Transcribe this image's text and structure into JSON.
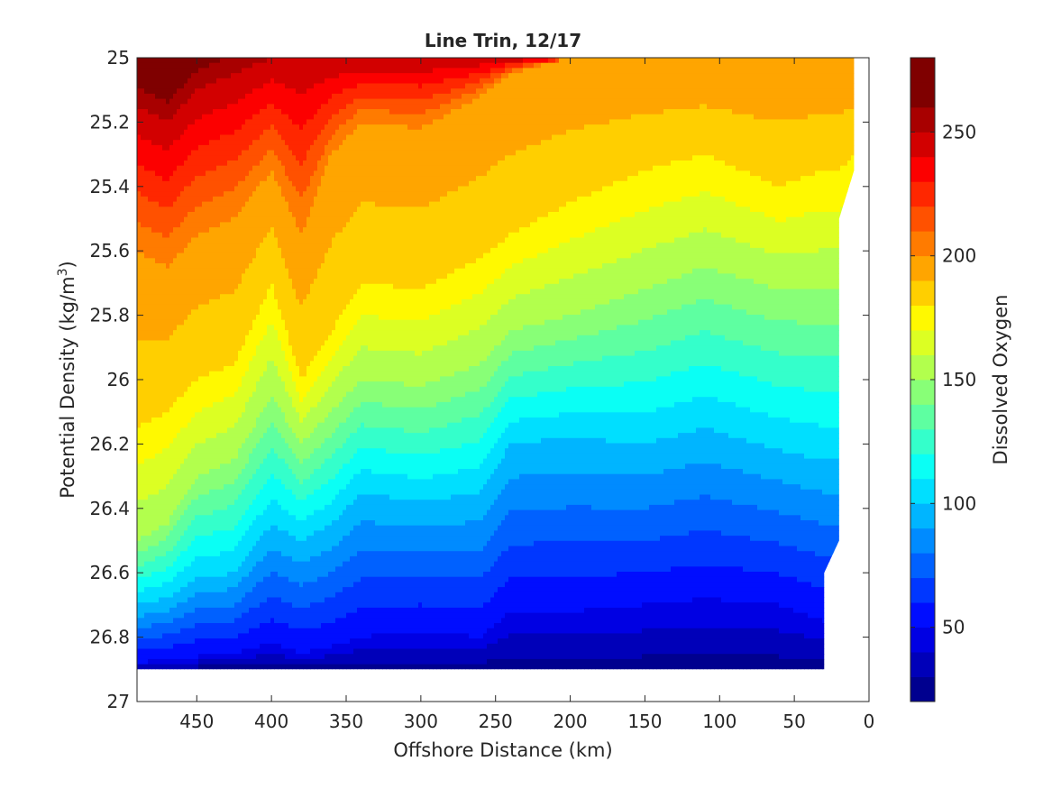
{
  "chart_data": {
    "type": "contour",
    "title": "Line Trin, 12/17",
    "xlabel": "Offshore Distance (km)",
    "ylabel_main": "Potential Density (kg/m",
    "ylabel_sup": "3",
    "ylabel_close": ")",
    "colorbar_label": "Dissolved Oxygen",
    "xlim": [
      490,
      0
    ],
    "x_reversed": true,
    "ylim": [
      25,
      27
    ],
    "y_reversed": true,
    "x_ticks": [
      "450",
      "400",
      "350",
      "300",
      "250",
      "200",
      "150",
      "100",
      "50",
      "0"
    ],
    "x_tick_values": [
      450,
      400,
      350,
      300,
      250,
      200,
      150,
      100,
      50,
      0
    ],
    "y_ticks": [
      "25",
      "25.2",
      "25.4",
      "25.6",
      "25.8",
      "26",
      "26.2",
      "26.4",
      "26.6",
      "26.8",
      "27"
    ],
    "y_tick_values": [
      25,
      25.2,
      25.4,
      25.6,
      25.8,
      26,
      26.2,
      26.4,
      26.6,
      26.8,
      27
    ],
    "colorbar_range": [
      20,
      280
    ],
    "colorbar_ticks": [
      "50",
      "100",
      "150",
      "200",
      "250"
    ],
    "colorbar_tick_values": [
      50,
      100,
      150,
      200,
      250
    ],
    "contour_levels": [
      20,
      30,
      40,
      50,
      60,
      70,
      80,
      90,
      100,
      110,
      120,
      130,
      140,
      150,
      160,
      170,
      180,
      190,
      200,
      210,
      220,
      230,
      240,
      250,
      260,
      270,
      280
    ],
    "colormap": [
      "#00008F",
      "#0000B9",
      "#0000E3",
      "#000DFF",
      "#0037FF",
      "#0061FF",
      "#008BFF",
      "#00B5FF",
      "#00DFFF",
      "#0AFFF5",
      "#34FFCB",
      "#5EFFA1",
      "#88FF77",
      "#B2FF4D",
      "#DCFF23",
      "#FFF900",
      "#FFCF00",
      "#FFA500",
      "#FF7B00",
      "#FF5100",
      "#FF2700",
      "#FC0000",
      "#D20000",
      "#A80000",
      "#7F0000",
      "#7F0000"
    ],
    "isoline_density_by_value": {
      "x": [
        490,
        470,
        450,
        425,
        400,
        380,
        360,
        340,
        300,
        260,
        240,
        200,
        150,
        110,
        60,
        30,
        20,
        10
      ],
      "o250": [
        25.15,
        25.2,
        25.1,
        25.05,
        25.0,
        25.0,
        25.0,
        25.0,
        25.0,
        25.0,
        25.0,
        25.0,
        25.0,
        25.0,
        25.0,
        25.0,
        25.0,
        25.0
      ],
      "o200": [
        25.6,
        25.65,
        25.55,
        25.5,
        25.35,
        25.55,
        25.3,
        25.2,
        25.22,
        25.12,
        25.05,
        25.0,
        25.0,
        25.0,
        25.0,
        25.0,
        25.0,
        25.0
      ],
      "o180": [
        26.15,
        26.1,
        26.0,
        25.95,
        25.7,
        26.0,
        25.85,
        25.7,
        25.72,
        25.62,
        25.55,
        25.45,
        25.35,
        25.3,
        25.4,
        25.35,
        25.35,
        25.3
      ],
      "o150": [
        26.5,
        26.45,
        26.3,
        26.25,
        26.05,
        26.2,
        26.1,
        26.0,
        26.02,
        25.95,
        25.85,
        25.8,
        25.72,
        25.65,
        25.72,
        25.72,
        25.72,
        25.72
      ],
      "o100": [
        26.7,
        26.68,
        26.62,
        26.6,
        26.45,
        26.5,
        26.45,
        26.35,
        26.38,
        26.35,
        26.2,
        26.18,
        26.2,
        26.15,
        26.22,
        26.25,
        26.25,
        26.25
      ],
      "o50": [
        26.88,
        26.87,
        26.86,
        26.85,
        26.82,
        26.85,
        26.83,
        26.8,
        26.78,
        26.8,
        26.72,
        26.72,
        26.7,
        26.68,
        26.7,
        26.75,
        26.75,
        26.75
      ]
    },
    "data_coverage": {
      "bottom_density": 26.9,
      "right_edge": [
        [
          10,
          25.0
        ],
        [
          10,
          25.35
        ],
        [
          20,
          25.5
        ],
        [
          20,
          26.5
        ],
        [
          30,
          26.6
        ],
        [
          30,
          26.9
        ]
      ]
    },
    "grid": false
  }
}
